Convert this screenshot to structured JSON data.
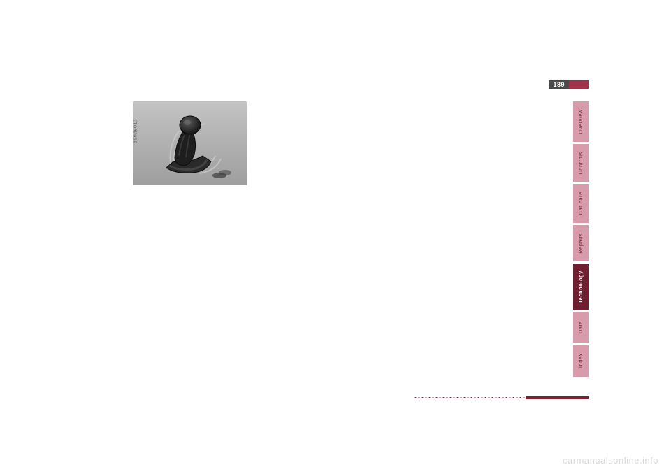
{
  "page": {
    "number": "189",
    "figure_label": "390de013"
  },
  "tabs": [
    {
      "label": "Overview",
      "bg": "#d89bab",
      "fg": "#6a2234",
      "height": 58,
      "active": false
    },
    {
      "label": "Controls",
      "bg": "#d89bab",
      "fg": "#6a2234",
      "height": 54,
      "active": false
    },
    {
      "label": "Car care",
      "bg": "#d89bab",
      "fg": "#6a2234",
      "height": 56,
      "active": false
    },
    {
      "label": "Repairs",
      "bg": "#d89bab",
      "fg": "#6a2234",
      "height": 52,
      "active": false
    },
    {
      "label": "Technology",
      "bg": "#6f1f30",
      "fg": "#ffffff",
      "height": 66,
      "active": true
    },
    {
      "label": "Data",
      "bg": "#d89bab",
      "fg": "#6a2234",
      "height": 44,
      "active": false
    },
    {
      "label": "Index",
      "bg": "#d89bab",
      "fg": "#6a2234",
      "height": 46,
      "active": false
    }
  ],
  "watermark": "carmanualsonline.info",
  "colors": {
    "accent": "#7a2033",
    "tab_inactive_bg": "#d89bab",
    "tab_active_bg": "#6f1f30"
  }
}
